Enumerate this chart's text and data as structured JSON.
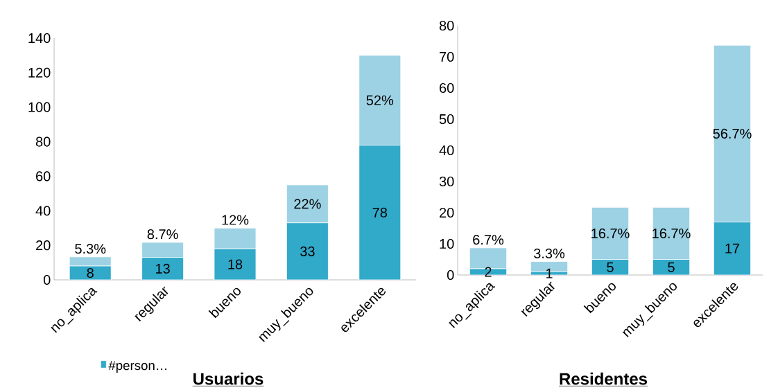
{
  "chart_data": [
    {
      "type": "bar",
      "title": "Usuarios",
      "stacked": true,
      "legend": "bottom",
      "categories": [
        "no_aplica",
        "regular",
        "bueno",
        "muy_bueno",
        "excelente"
      ],
      "ylim": [
        0,
        140
      ],
      "yticks": [
        0,
        20,
        40,
        60,
        80,
        100,
        120,
        140
      ],
      "series": [
        {
          "name": "#person…",
          "color": "#31a9c9",
          "values": [
            8,
            13,
            18,
            33,
            78
          ],
          "value_labels": [
            "8",
            "13",
            "18",
            "33",
            "78"
          ]
        },
        {
          "color": "#9dd2e4",
          "values": [
            5.3,
            8.7,
            12,
            22,
            52
          ],
          "value_labels": [
            "5.3%",
            "8.7%",
            "12%",
            "22%",
            "52%"
          ]
        }
      ]
    },
    {
      "type": "bar",
      "title": "Residentes",
      "stacked": true,
      "categories": [
        "no_aplica",
        "regular",
        "bueno",
        "muy_bueno",
        "excelente"
      ],
      "ylim": [
        0,
        80
      ],
      "yticks": [
        0,
        10,
        20,
        30,
        40,
        50,
        60,
        70,
        80
      ],
      "series": [
        {
          "color": "#31a9c9",
          "values": [
            2,
            1,
            5,
            5,
            17
          ],
          "value_labels": [
            "2",
            "1",
            "5",
            "5",
            "17"
          ]
        },
        {
          "color": "#9dd2e4",
          "values": [
            6.7,
            3.3,
            16.7,
            16.7,
            56.7
          ],
          "value_labels": [
            "6.7%",
            "3.3%",
            "16.7%",
            "16.7%",
            "56.7%"
          ]
        }
      ]
    }
  ]
}
